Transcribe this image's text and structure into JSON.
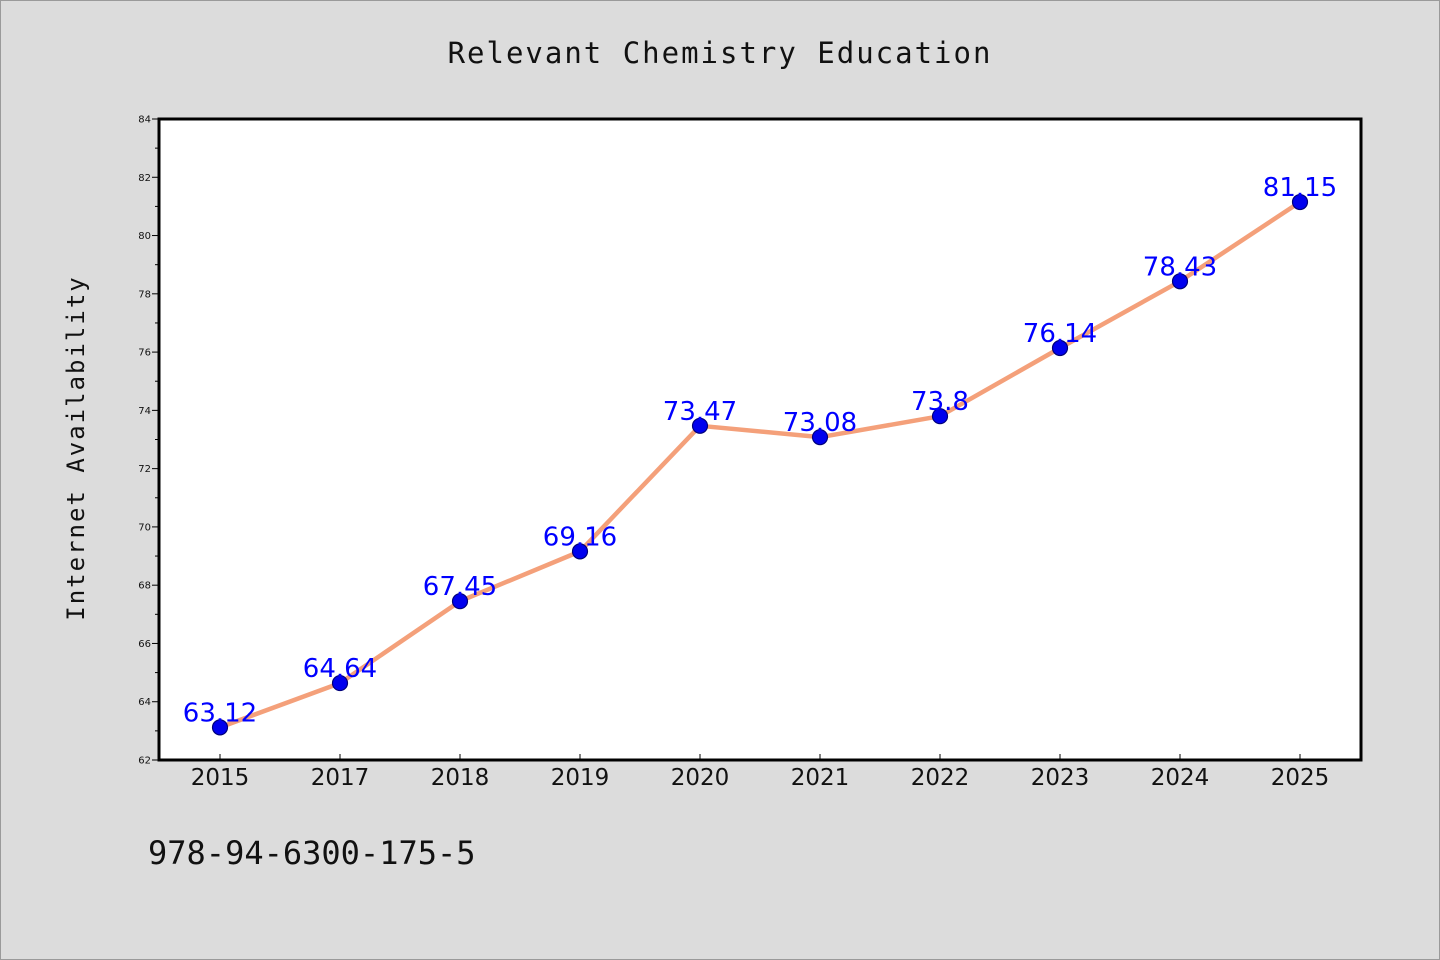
{
  "chart_data": {
    "type": "line",
    "title": "Relevant Chemistry Education",
    "xlabel": "",
    "ylabel": "Internet Availability",
    "categories": [
      "2015",
      "2017",
      "2018",
      "2019",
      "2020",
      "2021",
      "2022",
      "2023",
      "2024",
      "2025"
    ],
    "series": [
      {
        "values": [
          63.12,
          64.64,
          67.45,
          69.16,
          73.47,
          73.08,
          73.8,
          76.14,
          78.43,
          81.15
        ],
        "labels": [
          "63.12",
          "64.64",
          "67.45",
          "69.16",
          "73.47",
          "73.08",
          "73.8",
          "76.14",
          "78.43",
          "81.15"
        ],
        "line_color": "#f4a07a",
        "marker_color": "#0000ee"
      }
    ],
    "ylim": [
      62,
      84
    ],
    "yticks": [
      "62",
      "64",
      "66",
      "68",
      "70",
      "72",
      "74",
      "76",
      "78",
      "80",
      "82",
      "84"
    ],
    "grid": false,
    "legend": "none"
  },
  "annotation": "978-94-6300-175-5",
  "colors": {
    "background": "#dcdcdc",
    "plot_background": "#ffffff",
    "label_color": "#0000ff"
  }
}
